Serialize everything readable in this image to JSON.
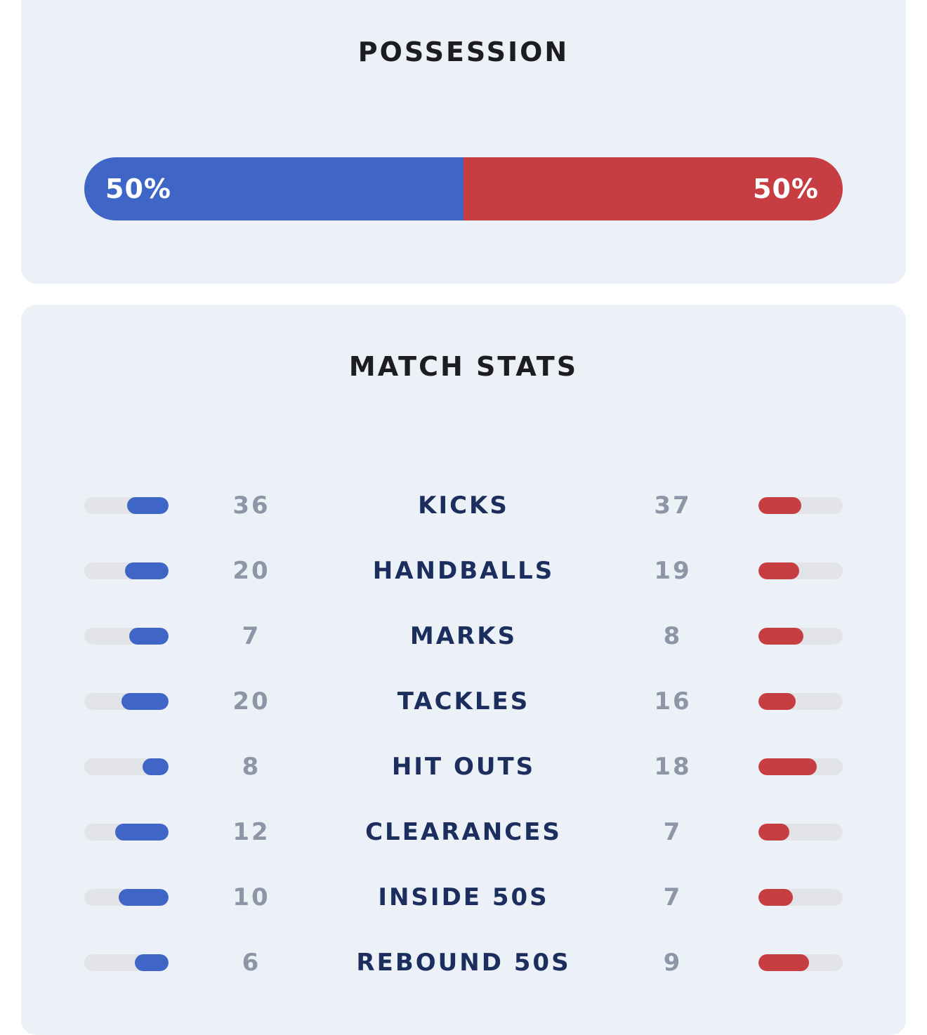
{
  "possession": {
    "title": "POSSESSION",
    "home_label": "50%",
    "away_label": "50%",
    "home_share": 0.5,
    "away_share": 0.5
  },
  "match_stats": {
    "title": "MATCH STATS",
    "rows": [
      {
        "label": "KICKS",
        "home": "36",
        "away": "37"
      },
      {
        "label": "HANDBALLS",
        "home": "20",
        "away": "19"
      },
      {
        "label": "MARKS",
        "home": "7",
        "away": "8"
      },
      {
        "label": "TACKLES",
        "home": "20",
        "away": "16"
      },
      {
        "label": "HIT OUTS",
        "home": "8",
        "away": "18"
      },
      {
        "label": "CLEARANCES",
        "home": "12",
        "away": "7"
      },
      {
        "label": "INSIDE 50S",
        "home": "10",
        "away": "7"
      },
      {
        "label": "REBOUND 50S",
        "home": "6",
        "away": "9"
      }
    ]
  },
  "colors": {
    "home": "#3f66c6",
    "away": "#c73e42",
    "track": "#e3e4e8",
    "card": "#ecf0f7",
    "title": "#1d1d1f",
    "label": "#1c2e5e",
    "value": "#8d96a7"
  }
}
